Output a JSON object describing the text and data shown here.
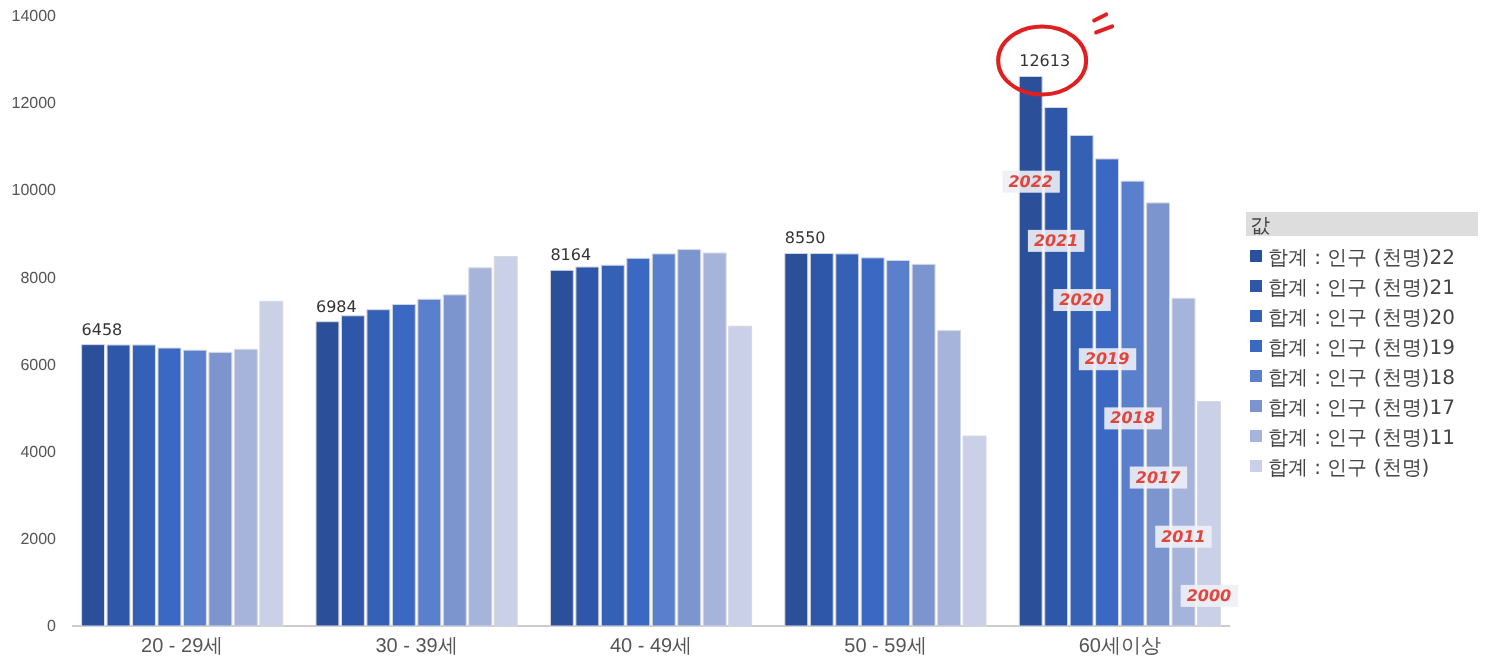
{
  "chart_data": {
    "type": "bar",
    "categories": [
      "20 - 29세",
      "30 - 39세",
      "40 - 49세",
      "50 - 59세",
      "60세이상"
    ],
    "series": [
      {
        "name": "합계 : 인구 (천명)22",
        "color": "#2c4f99",
        "values": [
          6458,
          6984,
          8164,
          8550,
          12613
        ],
        "value_labels": [
          "6458",
          "6984",
          "8164",
          "8550",
          "12613"
        ]
      },
      {
        "name": "합계 : 인구 (천명)21",
        "color": "#2f57a9",
        "values": [
          6450,
          7120,
          8240,
          8550,
          11900
        ]
      },
      {
        "name": "합계 : 인구 (천명)20",
        "color": "#3460b5",
        "values": [
          6450,
          7260,
          8280,
          8540,
          11260
        ]
      },
      {
        "name": "합계 : 인구 (천명)19",
        "color": "#3a68c2",
        "values": [
          6380,
          7380,
          8440,
          8450,
          10720
        ]
      },
      {
        "name": "합계 : 인구 (천명)18",
        "color": "#5a7fcc",
        "values": [
          6330,
          7500,
          8540,
          8390,
          10210
        ]
      },
      {
        "name": "합계 : 인구 (천명)17",
        "color": "#7d95cf",
        "values": [
          6280,
          7600,
          8640,
          8300,
          9710
        ]
      },
      {
        "name": "합계 : 인구 (천명)11",
        "color": "#a6b4dc",
        "values": [
          6350,
          8220,
          8560,
          6780,
          7520
        ]
      },
      {
        "name": "합계 : 인구 (천명)",
        "color": "#c9d0e8",
        "values": [
          7450,
          8480,
          6880,
          4360,
          5150
        ]
      }
    ],
    "ylim": [
      0,
      14000
    ],
    "yticks": [
      0,
      2000,
      4000,
      6000,
      8000,
      10000,
      12000,
      14000
    ],
    "grid": false,
    "legend": "right",
    "legend_title": "값",
    "annotations": [
      "2022",
      "2021",
      "2020",
      "2019",
      "2018",
      "2017",
      "2011",
      "2000"
    ]
  }
}
